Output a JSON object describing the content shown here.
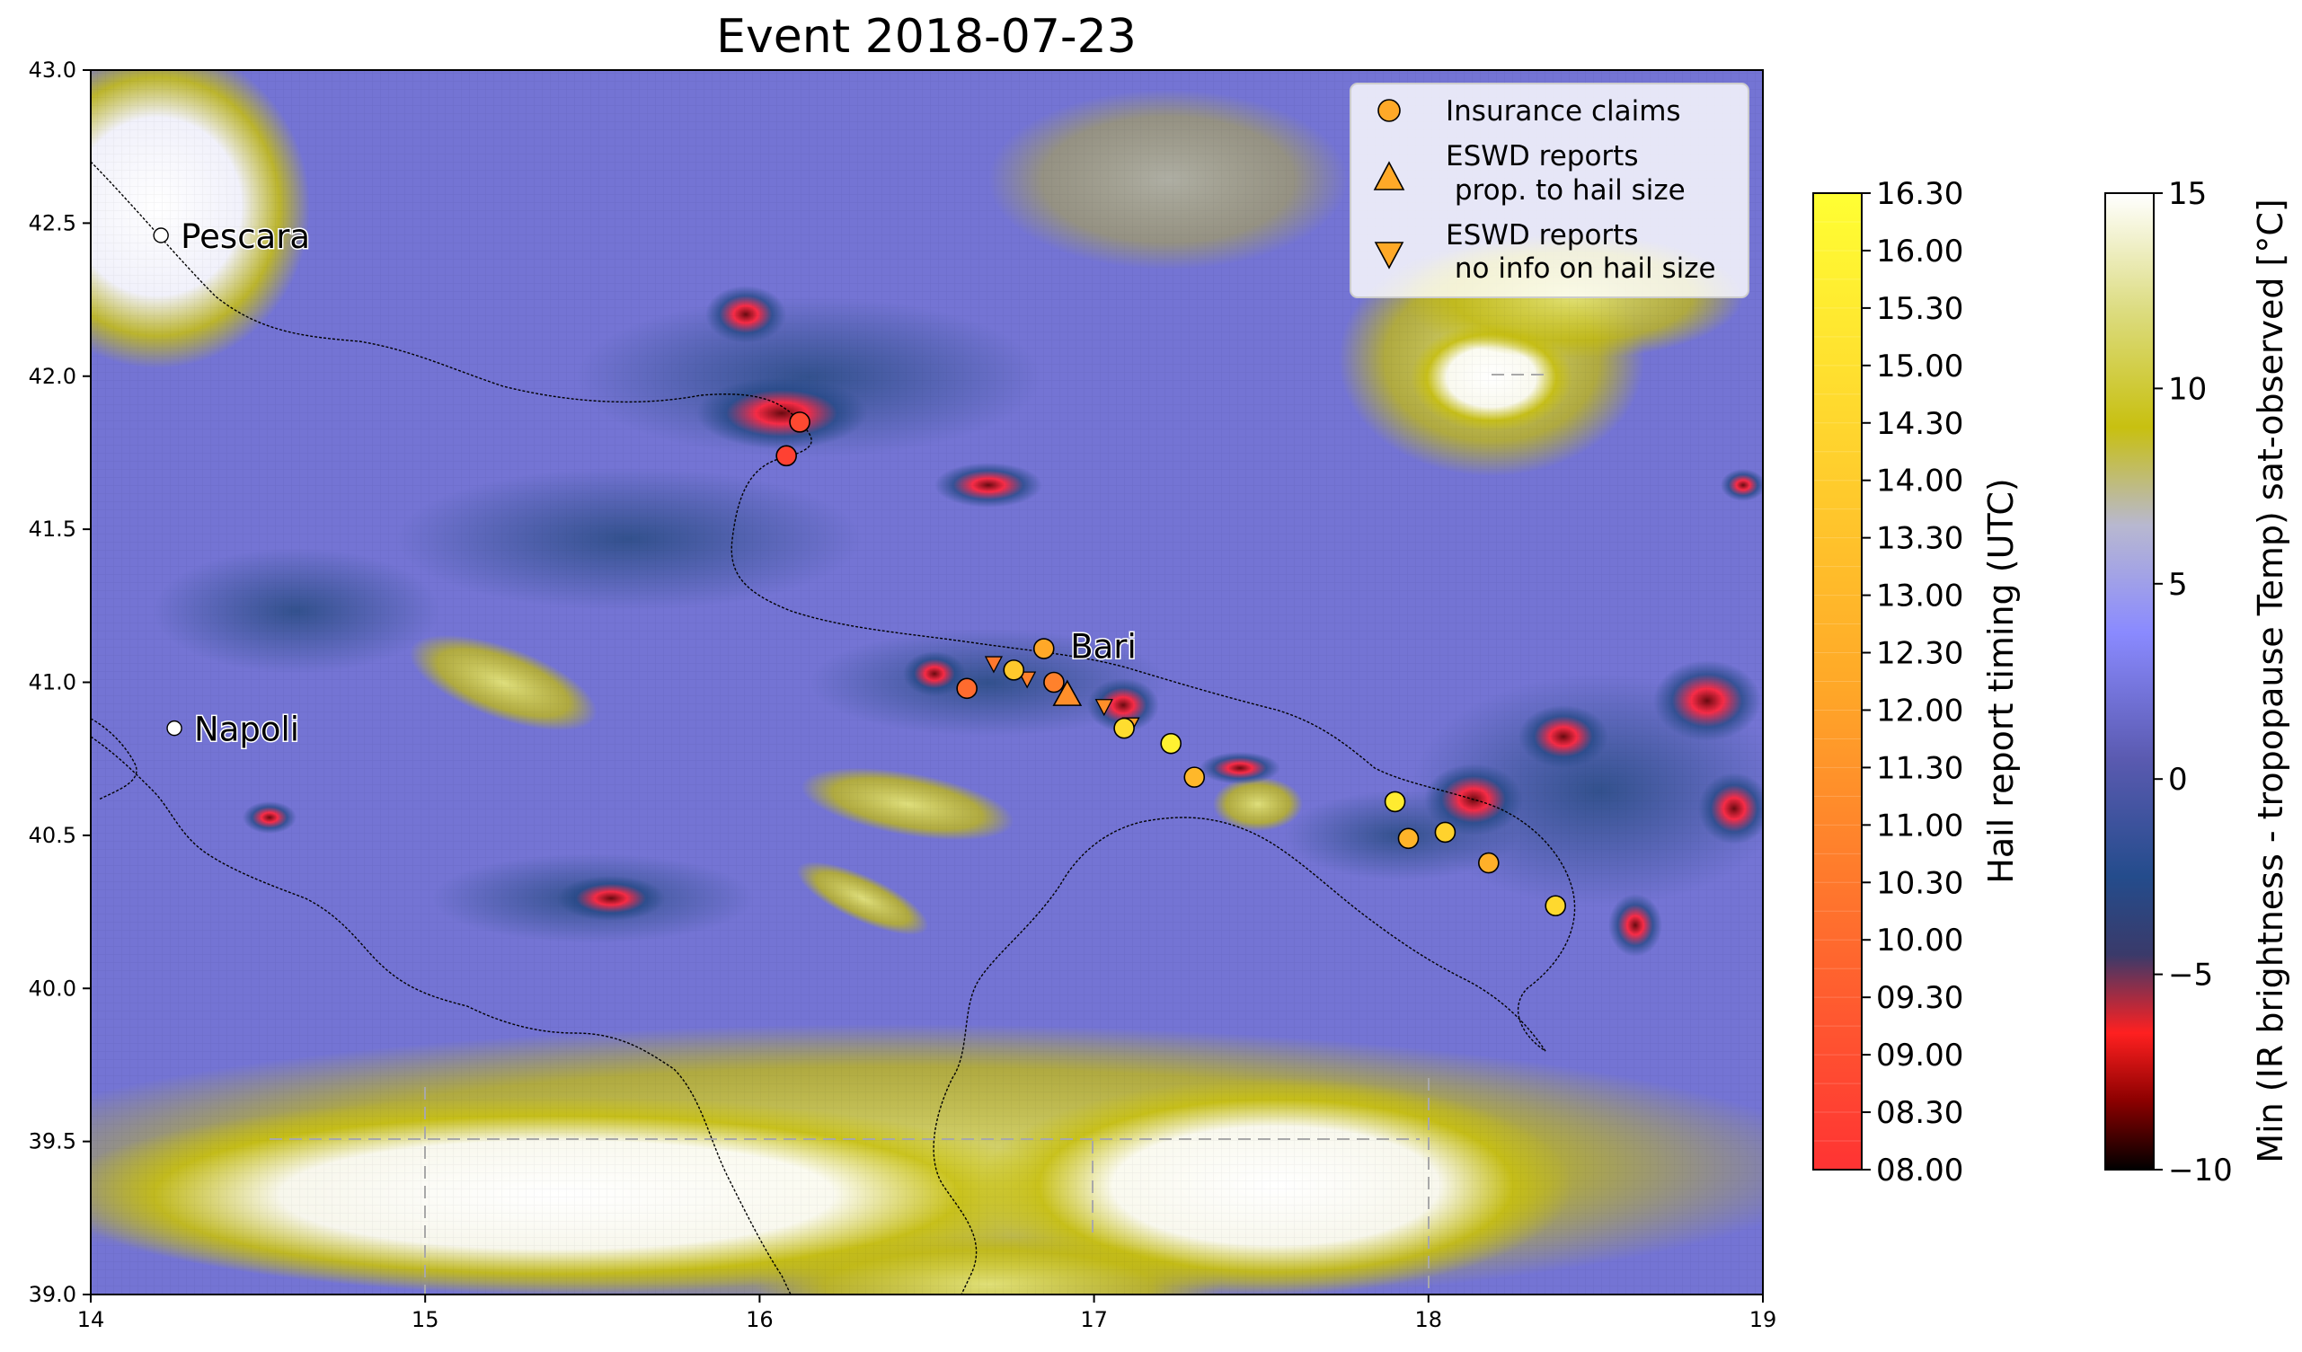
{
  "title": "Event 2018-07-23",
  "map": {
    "lon_range": [
      14,
      19
    ],
    "lat_range": [
      39.0,
      43.0
    ],
    "x_ticks": [
      "14",
      "15",
      "16",
      "17",
      "18",
      "19"
    ],
    "y_ticks": [
      "43.0",
      "42.5",
      "42.0",
      "41.5",
      "41.0",
      "40.5",
      "40.0",
      "39.5",
      "39.0"
    ]
  },
  "cities": [
    {
      "name": "Pescara",
      "lon": 14.21,
      "lat": 42.46
    },
    {
      "name": "Napoli",
      "lon": 14.25,
      "lat": 40.85
    },
    {
      "name": "Bari",
      "lon": 16.87,
      "lat": 41.12
    }
  ],
  "legend": {
    "placement": "top-right",
    "entries": [
      {
        "label": "Insurance claims",
        "marker": "circle"
      },
      {
        "label_line1": "ESWD reports",
        "label_line2": " prop. to hail size",
        "marker": "triangle-up"
      },
      {
        "label_line1": "ESWD reports",
        "label_line2": " no info on hail size",
        "marker": "triangle-down"
      }
    ]
  },
  "colorbar_timing": {
    "label": "Hail report timing (UTC)",
    "ticks": [
      "16.30",
      "16.00",
      "15.30",
      "15.00",
      "14.30",
      "14.00",
      "13.30",
      "13.00",
      "12.30",
      "12.00",
      "11.30",
      "11.00",
      "10.30",
      "10.00",
      "09.30",
      "09.00",
      "08.30",
      "08.00"
    ],
    "color_low": "#ff3333",
    "color_mid": "#ffa928",
    "color_high": "#ffff33"
  },
  "colorbar_temp": {
    "label": "Min (IR brightness - tropopause Temp) sat-observed [°C]",
    "ticks": [
      "15",
      "10",
      "5",
      "0",
      "−5",
      "−10"
    ],
    "range": [
      -10,
      15
    ]
  },
  "reports": {
    "insurance_claims": [
      {
        "lon": 16.08,
        "lat": 41.74,
        "time": 8.5
      },
      {
        "lon": 16.12,
        "lat": 41.85,
        "time": 8.8
      },
      {
        "lon": 16.62,
        "lat": 40.98,
        "time": 10.0
      },
      {
        "lon": 16.76,
        "lat": 41.04,
        "time": 13.8
      },
      {
        "lon": 16.85,
        "lat": 41.11,
        "time": 12.2
      },
      {
        "lon": 16.88,
        "lat": 41.0,
        "time": 10.8
      },
      {
        "lon": 17.09,
        "lat": 40.85,
        "time": 14.8
      },
      {
        "lon": 17.23,
        "lat": 40.8,
        "time": 15.8
      },
      {
        "lon": 17.3,
        "lat": 40.69,
        "time": 13.0
      },
      {
        "lon": 17.9,
        "lat": 40.61,
        "time": 15.5
      },
      {
        "lon": 17.94,
        "lat": 40.49,
        "time": 12.8
      },
      {
        "lon": 18.05,
        "lat": 40.51,
        "time": 14.3
      },
      {
        "lon": 18.18,
        "lat": 40.41,
        "time": 12.6
      },
      {
        "lon": 18.38,
        "lat": 40.27,
        "time": 14.6
      }
    ],
    "eswd_size": [
      {
        "lon": 16.92,
        "lat": 40.96,
        "time": 11.3
      }
    ],
    "eswd_noinfo": [
      {
        "lon": 16.7,
        "lat": 41.06,
        "time": 10.5
      },
      {
        "lon": 16.8,
        "lat": 41.01,
        "time": 10.8
      },
      {
        "lon": 17.03,
        "lat": 40.92,
        "time": 11.3
      },
      {
        "lon": 17.11,
        "lat": 40.86,
        "time": 12.0
      }
    ]
  }
}
